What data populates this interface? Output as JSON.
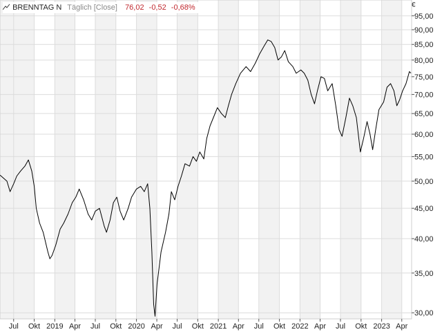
{
  "legend": {
    "name": "BRENNTAG N",
    "interval": "Täglich [Close]",
    "last": "76,02",
    "change": "-0,52",
    "change_pct": "-0,68%"
  },
  "chart_data": {
    "type": "line",
    "scale": "log",
    "currency": "€",
    "ylim": [
      29.3,
      101
    ],
    "y_ticks": [
      "30,00",
      "35,00",
      "40,00",
      "45,00",
      "50,00",
      "55,00",
      "60,00",
      "65,00",
      "70,00",
      "75,00",
      "80,00",
      "85,00",
      "90,00",
      "95,00"
    ],
    "x_ticks": [
      "Jul",
      "Okt",
      "2019",
      "Apr",
      "Jul",
      "Okt",
      "2020",
      "Apr",
      "Jul",
      "Okt",
      "2021",
      "Apr",
      "Jul",
      "Okt",
      "2022",
      "Apr",
      "Jul",
      "Okt",
      "2023",
      "Apr"
    ],
    "x_range": [
      "2018-05-01",
      "2023-05-15"
    ],
    "grid": true,
    "colors": {
      "line": "#000000",
      "band": "#f2f2f2",
      "grid": "#dcdcdc",
      "negative": "#c0282e"
    },
    "series": [
      {
        "values": [
          [
            "2018-05-01",
            51.2
          ],
          [
            "2018-06-01",
            50.0
          ],
          [
            "2018-06-15",
            48.0
          ],
          [
            "2018-07-01",
            49.5
          ],
          [
            "2018-07-15",
            51.0
          ],
          [
            "2018-08-01",
            52.0
          ],
          [
            "2018-08-20",
            53.0
          ],
          [
            "2018-09-05",
            54.3
          ],
          [
            "2018-09-20",
            52.0
          ],
          [
            "2018-10-01",
            49.0
          ],
          [
            "2018-10-10",
            45.0
          ],
          [
            "2018-10-25",
            42.5
          ],
          [
            "2018-11-10",
            41.0
          ],
          [
            "2018-12-01",
            38.0
          ],
          [
            "2018-12-10",
            37.0
          ],
          [
            "2018-12-20",
            37.5
          ],
          [
            "2019-01-05",
            39.0
          ],
          [
            "2019-01-25",
            41.5
          ],
          [
            "2019-02-10",
            42.5
          ],
          [
            "2019-03-01",
            44.0
          ],
          [
            "2019-03-20",
            46.0
          ],
          [
            "2019-04-05",
            47.0
          ],
          [
            "2019-04-20",
            48.5
          ],
          [
            "2019-05-10",
            46.5
          ],
          [
            "2019-05-30",
            44.0
          ],
          [
            "2019-06-15",
            43.0
          ],
          [
            "2019-07-01",
            44.5
          ],
          [
            "2019-07-20",
            45.0
          ],
          [
            "2019-08-10",
            42.0
          ],
          [
            "2019-08-20",
            41.0
          ],
          [
            "2019-09-05",
            43.0
          ],
          [
            "2019-09-20",
            46.0
          ],
          [
            "2019-10-05",
            47.0
          ],
          [
            "2019-10-20",
            44.5
          ],
          [
            "2019-11-05",
            43.0
          ],
          [
            "2019-11-25",
            45.0
          ],
          [
            "2019-12-10",
            47.0
          ],
          [
            "2020-01-01",
            48.5
          ],
          [
            "2020-01-20",
            49.0
          ],
          [
            "2020-02-05",
            48.0
          ],
          [
            "2020-02-20",
            49.5
          ],
          [
            "2020-03-01",
            45.0
          ],
          [
            "2020-03-10",
            38.0
          ],
          [
            "2020-03-18",
            31.0
          ],
          [
            "2020-03-24",
            29.6
          ],
          [
            "2020-04-02",
            33.5
          ],
          [
            "2020-04-20",
            38.0
          ],
          [
            "2020-05-10",
            41.0
          ],
          [
            "2020-05-25",
            44.0
          ],
          [
            "2020-06-05",
            48.0
          ],
          [
            "2020-06-20",
            46.5
          ],
          [
            "2020-07-05",
            49.0
          ],
          [
            "2020-07-20",
            51.0
          ],
          [
            "2020-08-05",
            53.5
          ],
          [
            "2020-08-25",
            53.0
          ],
          [
            "2020-09-10",
            55.0
          ],
          [
            "2020-09-25",
            54.0
          ],
          [
            "2020-10-10",
            56.0
          ],
          [
            "2020-10-28",
            54.5
          ],
          [
            "2020-11-10",
            59.0
          ],
          [
            "2020-11-25",
            62.0
          ],
          [
            "2020-12-10",
            64.0
          ],
          [
            "2020-12-28",
            66.5
          ],
          [
            "2021-01-15",
            65.0
          ],
          [
            "2021-02-01",
            64.0
          ],
          [
            "2021-02-15",
            67.0
          ],
          [
            "2021-03-01",
            70.0
          ],
          [
            "2021-03-20",
            73.0
          ],
          [
            "2021-04-10",
            76.0
          ],
          [
            "2021-05-05",
            78.0
          ],
          [
            "2021-05-25",
            76.5
          ],
          [
            "2021-06-15",
            79.0
          ],
          [
            "2021-07-05",
            82.0
          ],
          [
            "2021-07-25",
            84.5
          ],
          [
            "2021-08-10",
            86.5
          ],
          [
            "2021-08-25",
            86.0
          ],
          [
            "2021-09-10",
            84.0
          ],
          [
            "2021-09-25",
            80.0
          ],
          [
            "2021-10-10",
            81.0
          ],
          [
            "2021-10-25",
            83.0
          ],
          [
            "2021-11-10",
            79.5
          ],
          [
            "2021-11-30",
            78.0
          ],
          [
            "2021-12-15",
            76.0
          ],
          [
            "2022-01-05",
            77.0
          ],
          [
            "2022-01-20",
            76.0
          ],
          [
            "2022-02-05",
            74.0
          ],
          [
            "2022-02-20",
            70.0
          ],
          [
            "2022-03-07",
            67.5
          ],
          [
            "2022-03-20",
            71.0
          ],
          [
            "2022-04-05",
            75.0
          ],
          [
            "2022-04-20",
            74.5
          ],
          [
            "2022-05-05",
            71.0
          ],
          [
            "2022-05-25",
            73.0
          ],
          [
            "2022-06-10",
            67.0
          ],
          [
            "2022-06-25",
            61.0
          ],
          [
            "2022-07-08",
            59.5
          ],
          [
            "2022-07-25",
            64.0
          ],
          [
            "2022-08-10",
            69.0
          ],
          [
            "2022-08-25",
            67.0
          ],
          [
            "2022-09-10",
            64.0
          ],
          [
            "2022-09-28",
            56.0
          ],
          [
            "2022-10-12",
            59.0
          ],
          [
            "2022-10-28",
            63.0
          ],
          [
            "2022-11-10",
            60.0
          ],
          [
            "2022-11-22",
            56.5
          ],
          [
            "2022-12-05",
            61.0
          ],
          [
            "2022-12-20",
            66.0
          ],
          [
            "2023-01-10",
            68.0
          ],
          [
            "2023-01-25",
            72.0
          ],
          [
            "2023-02-10",
            73.0
          ],
          [
            "2023-02-25",
            71.0
          ],
          [
            "2023-03-10",
            67.0
          ],
          [
            "2023-03-22",
            68.5
          ],
          [
            "2023-04-05",
            71.0
          ],
          [
            "2023-04-20",
            73.0
          ],
          [
            "2023-05-05",
            76.5
          ],
          [
            "2023-05-12",
            76.02
          ]
        ]
      }
    ]
  }
}
